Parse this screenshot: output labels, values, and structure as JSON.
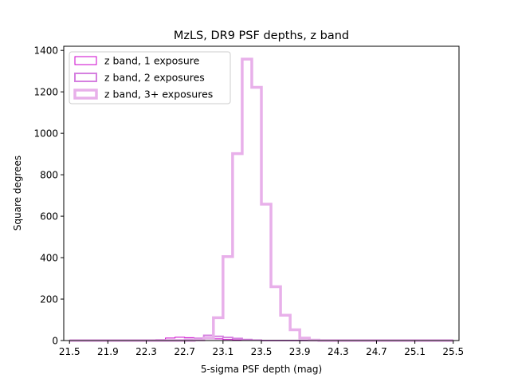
{
  "chart_data": {
    "type": "histogram-step",
    "title": "MzLS, DR9 PSF depths, z band",
    "xlabel": "5-sigma PSF depth (mag)",
    "ylabel": "Square degrees",
    "xlim": [
      21.44,
      25.56
    ],
    "ylim": [
      0,
      1420
    ],
    "xticks": [
      "21.5",
      "21.9",
      "22.3",
      "22.7",
      "23.1",
      "23.5",
      "23.9",
      "24.3",
      "24.7",
      "25.1",
      "25.5"
    ],
    "yticks": [
      "0",
      "200",
      "400",
      "600",
      "800",
      "1000",
      "1200",
      "1400"
    ],
    "bin_edges": [
      21.5,
      21.6,
      21.7,
      21.8,
      21.9,
      22.0,
      22.1,
      22.2,
      22.3,
      22.4,
      22.5,
      22.6,
      22.7,
      22.8,
      22.9,
      23.0,
      23.1,
      23.2,
      23.3,
      23.4,
      23.5,
      23.6,
      23.7,
      23.8,
      23.9,
      24.0,
      24.1,
      24.2,
      24.3,
      24.4,
      24.5,
      24.6,
      24.7,
      24.8,
      24.9,
      25.0,
      25.1,
      25.2,
      25.3,
      25.4,
      25.5
    ],
    "legend_position": "top-left",
    "series": [
      {
        "name": "z band, 1 exposure",
        "color": "#cc00cc",
        "stroke_width": 1,
        "values": [
          0,
          0,
          0,
          0,
          0,
          0,
          0,
          0,
          0,
          5,
          12,
          16,
          14,
          12,
          10,
          8,
          5,
          3,
          1,
          0,
          0,
          0,
          0,
          0,
          0,
          0,
          0,
          0,
          0,
          0,
          0,
          0,
          0,
          0,
          0,
          0,
          0,
          0,
          0,
          0
        ]
      },
      {
        "name": "z band, 2 exposures",
        "color": "#d580e0",
        "stroke_width": 2,
        "values": [
          0,
          0,
          0,
          0,
          0,
          0,
          0,
          0,
          0,
          0,
          0,
          2,
          6,
          10,
          25,
          20,
          15,
          10,
          5,
          2,
          0,
          0,
          0,
          0,
          0,
          0,
          0,
          0,
          0,
          0,
          0,
          0,
          0,
          0,
          0,
          0,
          0,
          0,
          0,
          0
        ]
      },
      {
        "name": "z band, 3+ exposures",
        "color": "#e8b0ea",
        "stroke_width": 3.5,
        "values": [
          0,
          0,
          0,
          0,
          0,
          0,
          0,
          0,
          0,
          0,
          0,
          0,
          0,
          3,
          12,
          110,
          405,
          902,
          1358,
          1222,
          658,
          260,
          122,
          52,
          12,
          2,
          0,
          0,
          0,
          0,
          0,
          0,
          0,
          0,
          0,
          0,
          0,
          0,
          0,
          0
        ]
      }
    ]
  }
}
